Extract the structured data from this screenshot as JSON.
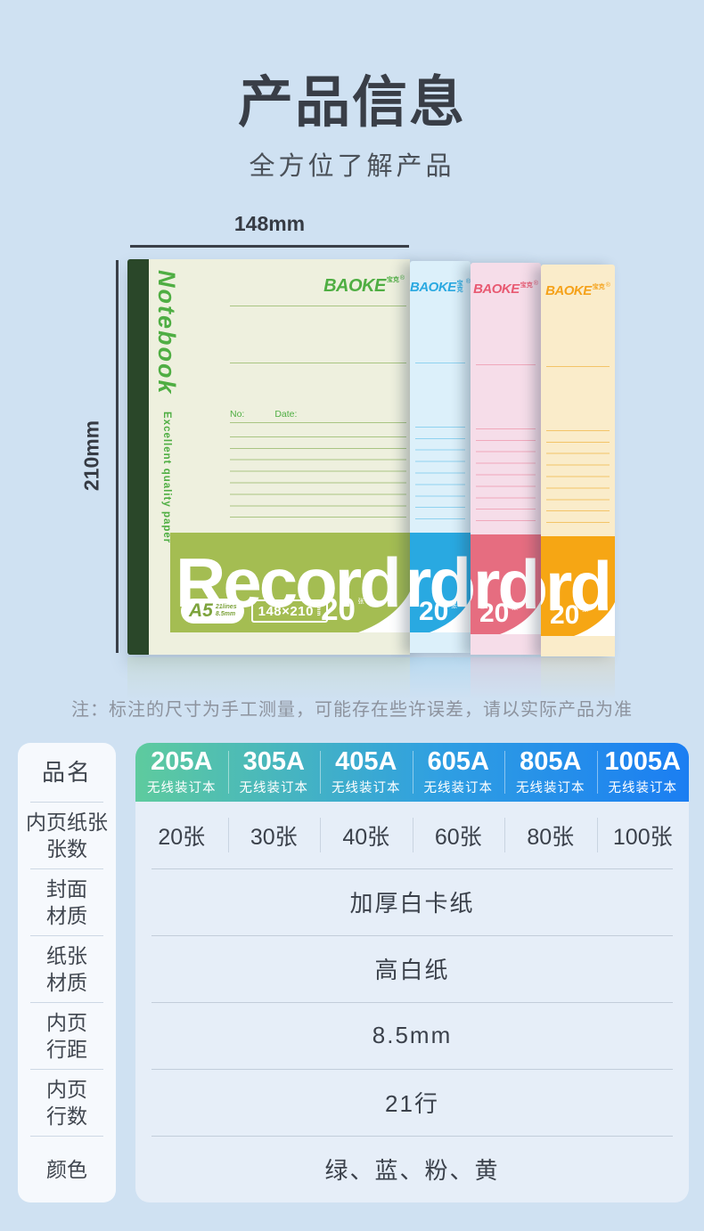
{
  "page": {
    "background": "#cfe1f2"
  },
  "header": {
    "title": "产品信息",
    "subtitle": "全方位了解产品"
  },
  "dimensions": {
    "width_label": "148mm",
    "height_label": "210mm"
  },
  "notebooks": {
    "brand": "BAOKE",
    "brand_cn": "宝克",
    "brand_reg": "®",
    "cover_title": "Notebook",
    "cover_subtitle": "Excellent quality paper",
    "record_text": "Record",
    "no_label": "No:",
    "date_label": "Date:",
    "a5_badge": {
      "size": "A5",
      "lines": "21lines",
      "pitch": "8.5mm"
    },
    "dim_badge": "148×210",
    "dim_badge_unit": "mm",
    "sheets": "20",
    "sheets_unit": "张",
    "variants": [
      {
        "name": "green",
        "cover": "#eef0de",
        "band": "#a4bd52",
        "line": "#a9c583",
        "logo": "#4fae43",
        "spine": "#2a4729",
        "badge_text": "#7da33c"
      },
      {
        "name": "blue",
        "cover": "#dcf0fa",
        "band": "#29a9e1",
        "line": "#8fd2f0",
        "logo": "#2ba9e1"
      },
      {
        "name": "pink",
        "cover": "#f6dde9",
        "band": "#e66d80",
        "line": "#f0a8bb",
        "logo": "#e85a72"
      },
      {
        "name": "yellow",
        "cover": "#faecca",
        "band": "#f6a614",
        "line": "#f3c468",
        "logo": "#f5a21a"
      }
    ]
  },
  "note": "注：标注的尺寸为手工测量，可能存在些许误差，请以实际产品为准",
  "spec_table": {
    "corner_label": "品名",
    "header_gradient": [
      "#5ecb9e",
      "#1b7ef2"
    ],
    "columns": [
      {
        "model": "205A",
        "type": "无线装订本"
      },
      {
        "model": "305A",
        "type": "无线装订本"
      },
      {
        "model": "405A",
        "type": "无线装订本"
      },
      {
        "model": "605A",
        "type": "无线装订本"
      },
      {
        "model": "805A",
        "type": "无线装订本"
      },
      {
        "model": "1005A",
        "type": "无线装订本"
      }
    ],
    "rows": [
      {
        "label": "内页纸张张数",
        "label_lines": [
          "内页纸张",
          "张数"
        ],
        "values": [
          "20张",
          "30张",
          "40张",
          "60张",
          "80张",
          "100张"
        ]
      },
      {
        "label": "封面材质",
        "label_lines": [
          "封面",
          "材质"
        ],
        "span_value": "加厚白卡纸"
      },
      {
        "label": "纸张材质",
        "label_lines": [
          "纸张",
          "材质"
        ],
        "span_value": "高白纸"
      },
      {
        "label": "内页行距",
        "label_lines": [
          "内页",
          "行距"
        ],
        "span_value": "8.5mm"
      },
      {
        "label": "内页行数",
        "label_lines": [
          "内页",
          "行数"
        ],
        "span_value": "21行"
      },
      {
        "label": "颜色",
        "label_lines": [
          "颜色"
        ],
        "span_value": "绿、蓝、粉、黄"
      }
    ]
  }
}
